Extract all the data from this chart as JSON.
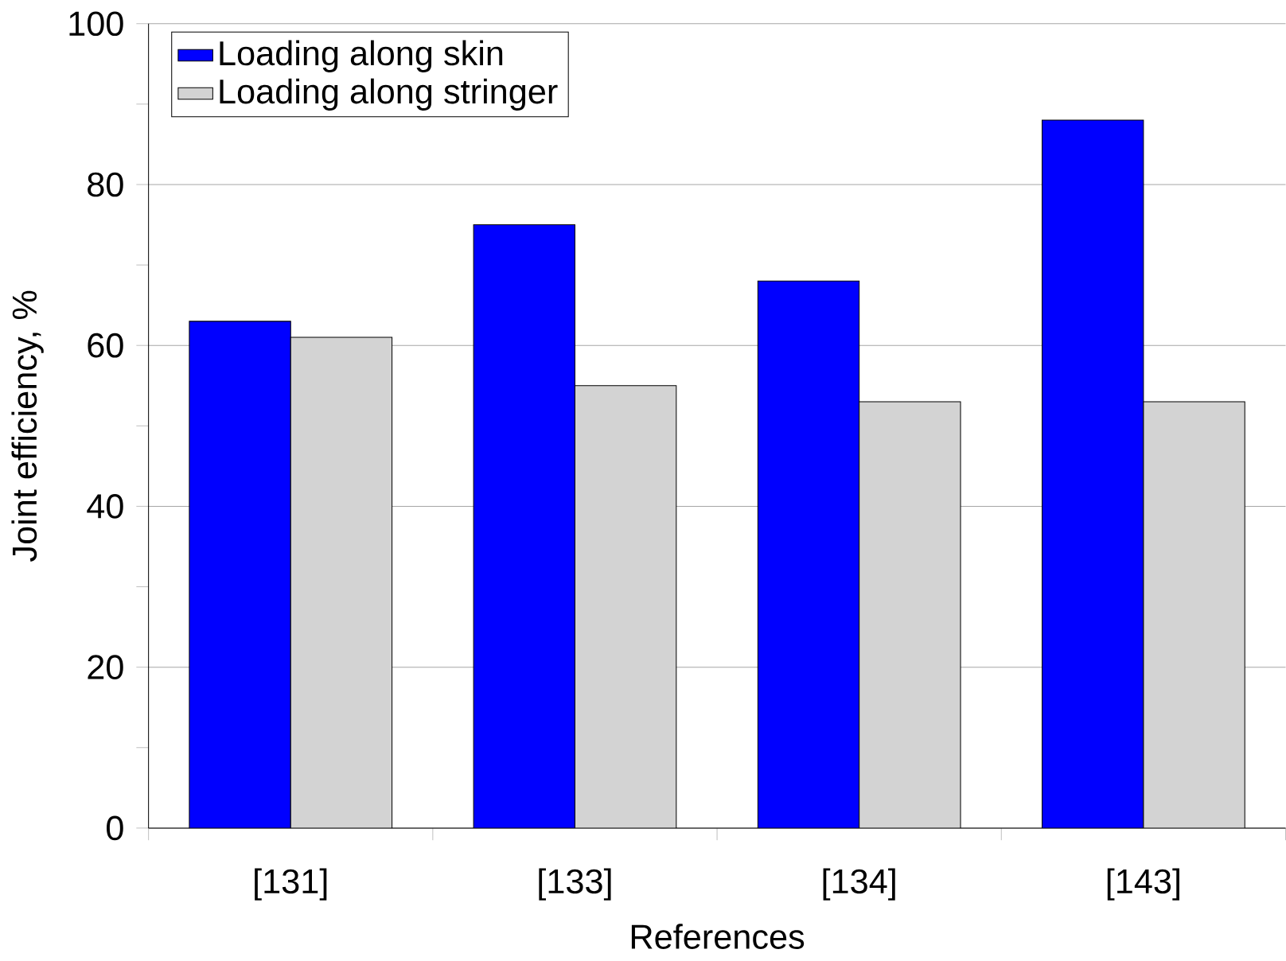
{
  "chart_data": {
    "type": "bar",
    "xlabel": "References",
    "ylabel": "Joint efficiency, %",
    "categories": [
      "[131]",
      "[133]",
      "[134]",
      "[143]"
    ],
    "series": [
      {
        "name": "Loading along skin",
        "color": "#0000ff",
        "values": [
          63,
          75,
          68,
          88
        ]
      },
      {
        "name": "Loading along stringer",
        "color": "#d3d3d3",
        "values": [
          61,
          55,
          53,
          53
        ]
      }
    ],
    "ylim": [
      0,
      100
    ],
    "yticks": [
      0,
      20,
      40,
      60,
      80,
      100
    ],
    "grid": "y",
    "legend": "top left"
  }
}
